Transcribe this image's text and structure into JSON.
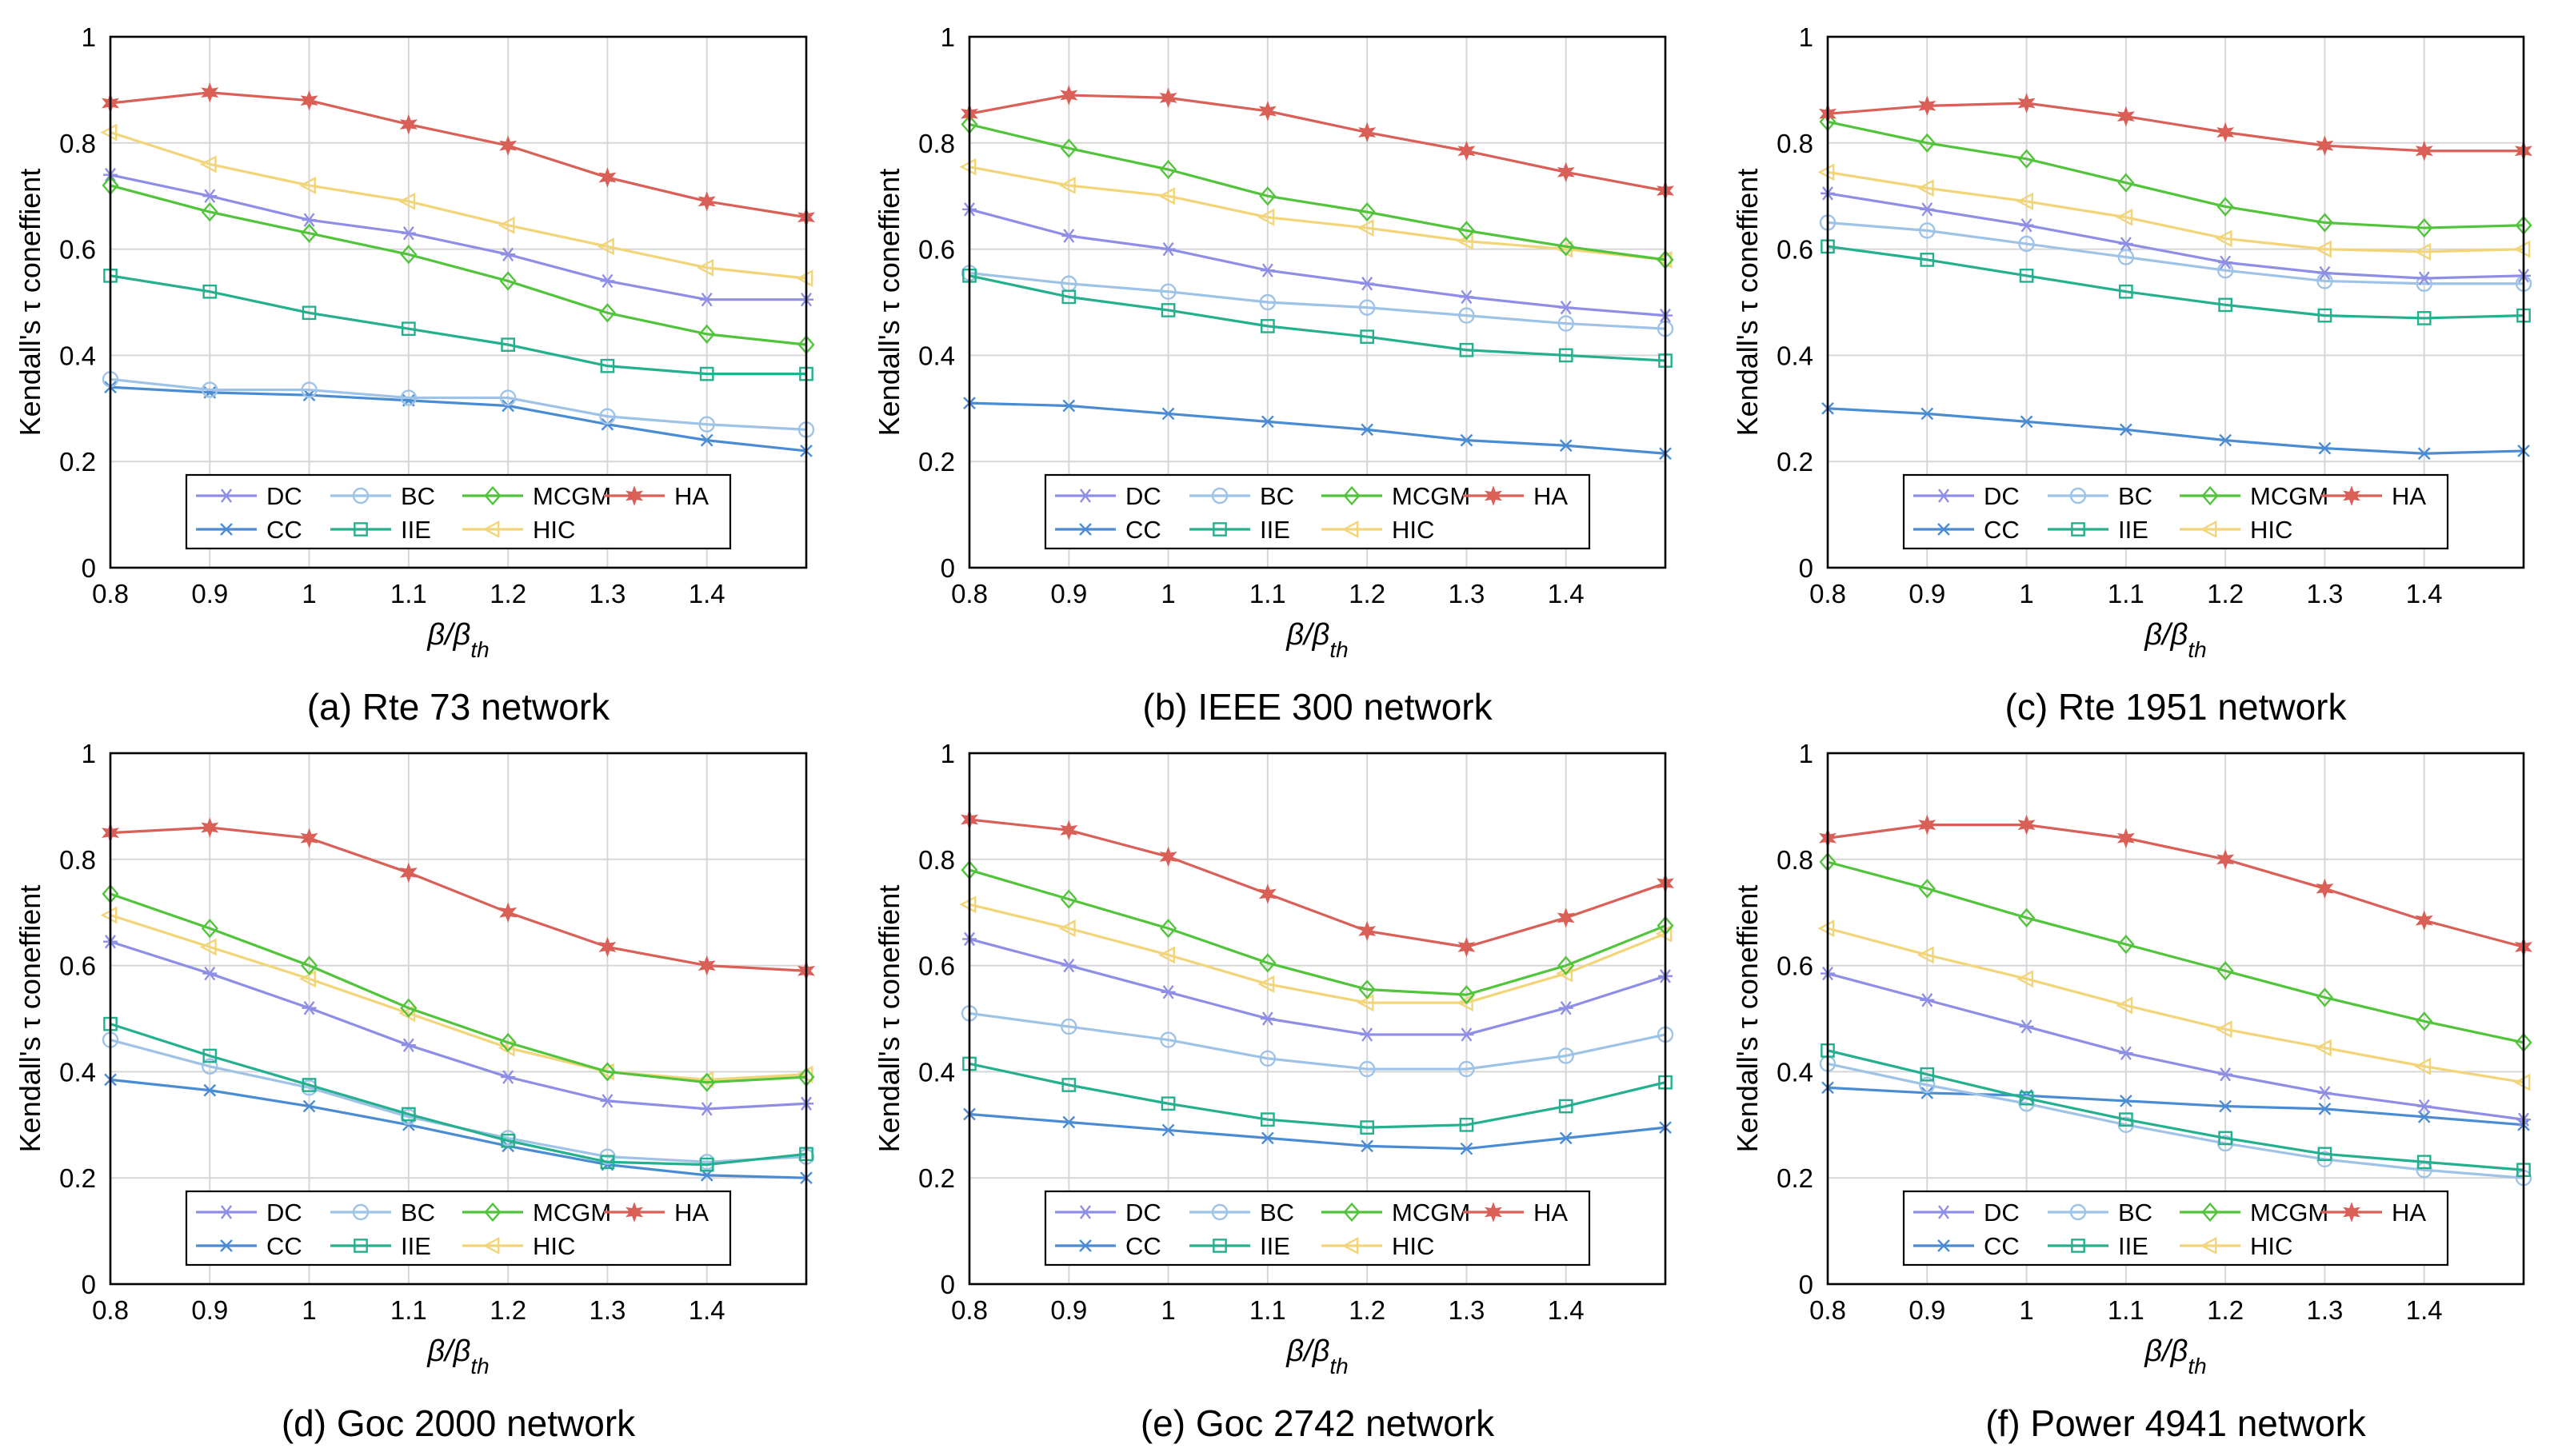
{
  "figure": {
    "ylabel": "Kendall's τ coneffient",
    "xlabel_main": "β/β",
    "xlabel_sub": "th",
    "legend_order": [
      "DC",
      "BC",
      "MCGM",
      "HA",
      "CC",
      "IIE",
      "HIC"
    ],
    "series_styles": {
      "DC": {
        "color": "#8f8ee6",
        "marker": "asterisk"
      },
      "BC": {
        "color": "#9ec3e6",
        "marker": "circle"
      },
      "MCGM": {
        "color": "#52c43c",
        "marker": "diamond"
      },
      "HA": {
        "color": "#d95f57",
        "marker": "star"
      },
      "CC": {
        "color": "#4a8cd4",
        "marker": "x"
      },
      "IIE": {
        "color": "#24b08e",
        "marker": "square"
      },
      "HIC": {
        "color": "#f2d479",
        "marker": "triangle-left"
      }
    }
  },
  "chart_data": [
    {
      "type": "line",
      "title": "(a) Rte 73 network",
      "x": [
        0.8,
        0.9,
        1.0,
        1.1,
        1.2,
        1.3,
        1.4,
        1.5
      ],
      "xticks": [
        "0.8",
        "0.9",
        "1",
        "1.1",
        "1.2",
        "1.3",
        "1.4"
      ],
      "yticks": [
        "0",
        "0.2",
        "0.4",
        "0.6",
        "0.8",
        "1"
      ],
      "xlim": [
        0.8,
        1.5
      ],
      "ylim": [
        0,
        1
      ],
      "grid": true,
      "legend": "bottom",
      "series": [
        {
          "name": "DC",
          "values": [
            0.74,
            0.7,
            0.655,
            0.63,
            0.59,
            0.54,
            0.505,
            0.505
          ]
        },
        {
          "name": "BC",
          "values": [
            0.355,
            0.335,
            0.335,
            0.32,
            0.32,
            0.285,
            0.27,
            0.26
          ]
        },
        {
          "name": "MCGM",
          "values": [
            0.72,
            0.67,
            0.63,
            0.59,
            0.54,
            0.48,
            0.44,
            0.42
          ]
        },
        {
          "name": "HA",
          "values": [
            0.875,
            0.895,
            0.88,
            0.835,
            0.795,
            0.735,
            0.69,
            0.66
          ]
        },
        {
          "name": "CC",
          "values": [
            0.34,
            0.33,
            0.325,
            0.315,
            0.305,
            0.27,
            0.24,
            0.22
          ]
        },
        {
          "name": "IIE",
          "values": [
            0.55,
            0.52,
            0.48,
            0.45,
            0.42,
            0.38,
            0.365,
            0.365
          ]
        },
        {
          "name": "HIC",
          "values": [
            0.82,
            0.76,
            0.72,
            0.69,
            0.645,
            0.605,
            0.565,
            0.545
          ]
        }
      ]
    },
    {
      "type": "line",
      "title": "(b) IEEE 300 network",
      "x": [
        0.8,
        0.9,
        1.0,
        1.1,
        1.2,
        1.3,
        1.4,
        1.5
      ],
      "xticks": [
        "0.8",
        "0.9",
        "1",
        "1.1",
        "1.2",
        "1.3",
        "1.4"
      ],
      "yticks": [
        "0",
        "0.2",
        "0.4",
        "0.6",
        "0.8",
        "1"
      ],
      "xlim": [
        0.8,
        1.5
      ],
      "ylim": [
        0,
        1
      ],
      "grid": true,
      "legend": "bottom",
      "series": [
        {
          "name": "DC",
          "values": [
            0.675,
            0.625,
            0.6,
            0.56,
            0.535,
            0.51,
            0.49,
            0.475
          ]
        },
        {
          "name": "BC",
          "values": [
            0.555,
            0.535,
            0.52,
            0.5,
            0.49,
            0.475,
            0.46,
            0.45
          ]
        },
        {
          "name": "MCGM",
          "values": [
            0.835,
            0.79,
            0.75,
            0.7,
            0.67,
            0.635,
            0.605,
            0.58
          ]
        },
        {
          "name": "HA",
          "values": [
            0.855,
            0.89,
            0.885,
            0.86,
            0.82,
            0.785,
            0.745,
            0.71
          ]
        },
        {
          "name": "CC",
          "values": [
            0.31,
            0.305,
            0.29,
            0.275,
            0.26,
            0.24,
            0.23,
            0.215
          ]
        },
        {
          "name": "IIE",
          "values": [
            0.55,
            0.51,
            0.485,
            0.455,
            0.435,
            0.41,
            0.4,
            0.39
          ]
        },
        {
          "name": "HIC",
          "values": [
            0.755,
            0.72,
            0.7,
            0.66,
            0.64,
            0.615,
            0.6,
            0.58
          ]
        }
      ]
    },
    {
      "type": "line",
      "title": "(c) Rte 1951 network",
      "x": [
        0.8,
        0.9,
        1.0,
        1.1,
        1.2,
        1.3,
        1.4,
        1.5
      ],
      "xticks": [
        "0.8",
        "0.9",
        "1",
        "1.1",
        "1.2",
        "1.3",
        "1.4"
      ],
      "yticks": [
        "0",
        "0.2",
        "0.4",
        "0.6",
        "0.8",
        "1"
      ],
      "xlim": [
        0.8,
        1.5
      ],
      "ylim": [
        0,
        1
      ],
      "grid": true,
      "legend": "bottom",
      "series": [
        {
          "name": "DC",
          "values": [
            0.705,
            0.675,
            0.645,
            0.61,
            0.575,
            0.555,
            0.545,
            0.55
          ]
        },
        {
          "name": "BC",
          "values": [
            0.65,
            0.635,
            0.61,
            0.585,
            0.56,
            0.54,
            0.535,
            0.535
          ]
        },
        {
          "name": "MCGM",
          "values": [
            0.84,
            0.8,
            0.77,
            0.725,
            0.68,
            0.65,
            0.64,
            0.645
          ]
        },
        {
          "name": "HA",
          "values": [
            0.855,
            0.87,
            0.875,
            0.85,
            0.82,
            0.795,
            0.785,
            0.785
          ]
        },
        {
          "name": "CC",
          "values": [
            0.3,
            0.29,
            0.275,
            0.26,
            0.24,
            0.225,
            0.215,
            0.22
          ]
        },
        {
          "name": "IIE",
          "values": [
            0.605,
            0.58,
            0.55,
            0.52,
            0.495,
            0.475,
            0.47,
            0.475
          ]
        },
        {
          "name": "HIC",
          "values": [
            0.745,
            0.715,
            0.69,
            0.66,
            0.62,
            0.6,
            0.595,
            0.6
          ]
        }
      ]
    },
    {
      "type": "line",
      "title": "(d) Goc 2000 network",
      "x": [
        0.8,
        0.9,
        1.0,
        1.1,
        1.2,
        1.3,
        1.4,
        1.5
      ],
      "xticks": [
        "0.8",
        "0.9",
        "1",
        "1.1",
        "1.2",
        "1.3",
        "1.4"
      ],
      "yticks": [
        "0",
        "0.2",
        "0.4",
        "0.6",
        "0.8",
        "1"
      ],
      "xlim": [
        0.8,
        1.5
      ],
      "ylim": [
        0,
        1
      ],
      "grid": true,
      "legend": "bottom",
      "series": [
        {
          "name": "DC",
          "values": [
            0.645,
            0.585,
            0.52,
            0.45,
            0.39,
            0.345,
            0.33,
            0.34
          ]
        },
        {
          "name": "BC",
          "values": [
            0.46,
            0.41,
            0.37,
            0.315,
            0.275,
            0.24,
            0.23,
            0.24
          ]
        },
        {
          "name": "MCGM",
          "values": [
            0.735,
            0.67,
            0.6,
            0.52,
            0.455,
            0.4,
            0.38,
            0.39
          ]
        },
        {
          "name": "HA",
          "values": [
            0.85,
            0.86,
            0.84,
            0.775,
            0.7,
            0.635,
            0.6,
            0.59
          ]
        },
        {
          "name": "CC",
          "values": [
            0.385,
            0.365,
            0.335,
            0.3,
            0.26,
            0.225,
            0.205,
            0.2
          ]
        },
        {
          "name": "IIE",
          "values": [
            0.49,
            0.43,
            0.375,
            0.32,
            0.27,
            0.23,
            0.225,
            0.245
          ]
        },
        {
          "name": "HIC",
          "values": [
            0.695,
            0.635,
            0.575,
            0.51,
            0.445,
            0.4,
            0.385,
            0.395
          ]
        }
      ]
    },
    {
      "type": "line",
      "title": "(e) Goc 2742 network",
      "x": [
        0.8,
        0.9,
        1.0,
        1.1,
        1.2,
        1.3,
        1.4,
        1.5
      ],
      "xticks": [
        "0.8",
        "0.9",
        "1",
        "1.1",
        "1.2",
        "1.3",
        "1.4"
      ],
      "yticks": [
        "0",
        "0.2",
        "0.4",
        "0.6",
        "0.8",
        "1"
      ],
      "xlim": [
        0.8,
        1.5
      ],
      "ylim": [
        0,
        1
      ],
      "grid": true,
      "legend": "bottom",
      "series": [
        {
          "name": "DC",
          "values": [
            0.65,
            0.6,
            0.55,
            0.5,
            0.47,
            0.47,
            0.52,
            0.58
          ]
        },
        {
          "name": "BC",
          "values": [
            0.51,
            0.485,
            0.46,
            0.425,
            0.405,
            0.405,
            0.43,
            0.47
          ]
        },
        {
          "name": "MCGM",
          "values": [
            0.78,
            0.725,
            0.67,
            0.605,
            0.555,
            0.545,
            0.6,
            0.675
          ]
        },
        {
          "name": "HA",
          "values": [
            0.875,
            0.855,
            0.805,
            0.735,
            0.665,
            0.635,
            0.69,
            0.755
          ]
        },
        {
          "name": "CC",
          "values": [
            0.32,
            0.305,
            0.29,
            0.275,
            0.26,
            0.255,
            0.275,
            0.295
          ]
        },
        {
          "name": "IIE",
          "values": [
            0.415,
            0.375,
            0.34,
            0.31,
            0.295,
            0.3,
            0.335,
            0.38
          ]
        },
        {
          "name": "HIC",
          "values": [
            0.715,
            0.67,
            0.62,
            0.565,
            0.53,
            0.53,
            0.585,
            0.66
          ]
        }
      ]
    },
    {
      "type": "line",
      "title": "(f) Power 4941 network",
      "x": [
        0.8,
        0.9,
        1.0,
        1.1,
        1.2,
        1.3,
        1.4,
        1.5
      ],
      "xticks": [
        "0.8",
        "0.9",
        "1",
        "1.1",
        "1.2",
        "1.3",
        "1.4"
      ],
      "yticks": [
        "0",
        "0.2",
        "0.4",
        "0.6",
        "0.8",
        "1"
      ],
      "xlim": [
        0.8,
        1.5
      ],
      "ylim": [
        0,
        1
      ],
      "grid": true,
      "legend": "bottom",
      "series": [
        {
          "name": "DC",
          "values": [
            0.585,
            0.535,
            0.485,
            0.435,
            0.395,
            0.36,
            0.335,
            0.31
          ]
        },
        {
          "name": "BC",
          "values": [
            0.415,
            0.375,
            0.34,
            0.3,
            0.265,
            0.235,
            0.215,
            0.2
          ]
        },
        {
          "name": "MCGM",
          "values": [
            0.795,
            0.745,
            0.69,
            0.64,
            0.59,
            0.54,
            0.495,
            0.455
          ]
        },
        {
          "name": "HA",
          "values": [
            0.84,
            0.865,
            0.865,
            0.84,
            0.8,
            0.745,
            0.685,
            0.635
          ]
        },
        {
          "name": "CC",
          "values": [
            0.37,
            0.36,
            0.355,
            0.345,
            0.335,
            0.33,
            0.315,
            0.3
          ]
        },
        {
          "name": "IIE",
          "values": [
            0.44,
            0.395,
            0.35,
            0.31,
            0.275,
            0.245,
            0.23,
            0.215
          ]
        },
        {
          "name": "HIC",
          "values": [
            0.67,
            0.62,
            0.575,
            0.525,
            0.48,
            0.445,
            0.41,
            0.38
          ]
        }
      ]
    }
  ]
}
